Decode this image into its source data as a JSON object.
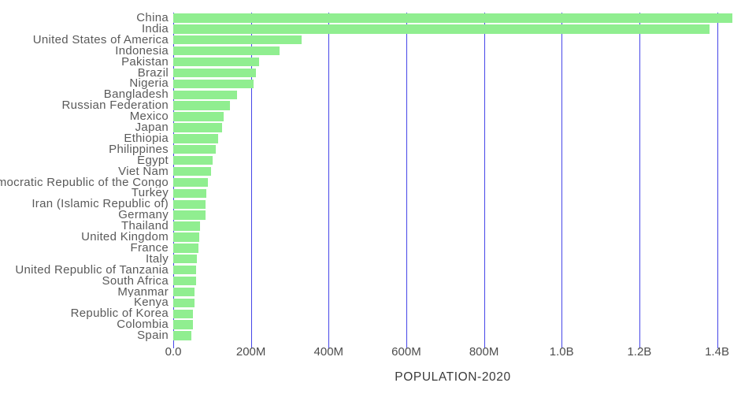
{
  "chart_data": {
    "type": "bar",
    "orientation": "horizontal",
    "title": "",
    "xlabel": "POPULATION-2020",
    "ylabel": "",
    "grid": true,
    "legend": false,
    "x_axis": {
      "max_millions": 1480,
      "ticks": [
        {
          "value_millions": 0,
          "label": "0.0"
        },
        {
          "value_millions": 200,
          "label": "200M"
        },
        {
          "value_millions": 400,
          "label": "400M"
        },
        {
          "value_millions": 600,
          "label": "600M"
        },
        {
          "value_millions": 800,
          "label": "800M"
        },
        {
          "value_millions": 1000,
          "label": "1.0B"
        },
        {
          "value_millions": 1200,
          "label": "1.2B"
        },
        {
          "value_millions": 1400,
          "label": "1.4B"
        }
      ]
    },
    "categories": [
      "China",
      "India",
      "United States of America",
      "Indonesia",
      "Pakistan",
      "Brazil",
      "Nigeria",
      "Bangladesh",
      "Russian Federation",
      "Mexico",
      "Japan",
      "Ethiopia",
      "Philippines",
      "Egypt",
      "Viet Nam",
      "Democratic Republic of the Congo",
      "Turkey",
      "Iran (Islamic Republic of)",
      "Germany",
      "Thailand",
      "United Kingdom",
      "France",
      "Italy",
      "United Republic of Tanzania",
      "South Africa",
      "Myanmar",
      "Kenya",
      "Republic of Korea",
      "Colombia",
      "Spain"
    ],
    "values_millions": [
      1439.3,
      1380.0,
      331.0,
      273.5,
      220.9,
      212.6,
      206.1,
      164.7,
      145.9,
      128.9,
      126.5,
      115.0,
      109.6,
      102.3,
      97.3,
      89.6,
      84.3,
      84.0,
      83.8,
      69.8,
      67.9,
      65.3,
      60.5,
      59.7,
      59.3,
      54.4,
      53.8,
      51.3,
      50.9,
      46.8
    ],
    "colors": {
      "bar": "#90ee90",
      "grid": "#4646e8",
      "label_text": "#5a5a5a",
      "tick_text": "#4d4d4d",
      "title_text": "#3a3a3a",
      "background": "#ffffff"
    }
  }
}
